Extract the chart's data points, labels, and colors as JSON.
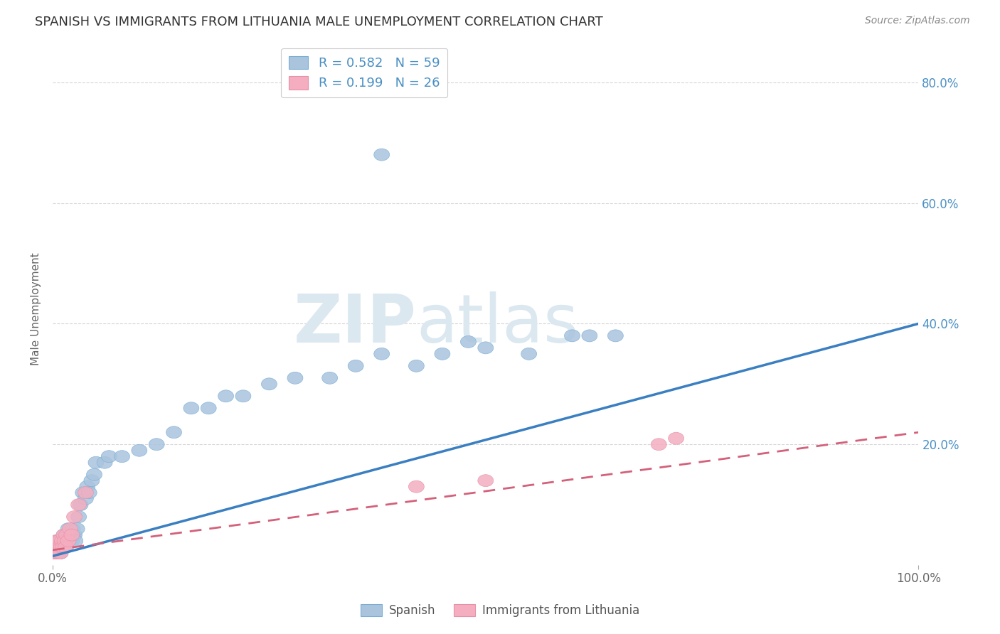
{
  "title": "SPANISH VS IMMIGRANTS FROM LITHUANIA MALE UNEMPLOYMENT CORRELATION CHART",
  "source_text": "Source: ZipAtlas.com",
  "ylabel": "Male Unemployment",
  "xlim": [
    0,
    1.0
  ],
  "ylim": [
    0,
    0.85
  ],
  "ytick_values": [
    0.0,
    0.2,
    0.4,
    0.6,
    0.8
  ],
  "ytick_labels": [
    "",
    "20.0%",
    "40.0%",
    "60.0%",
    "80.0%"
  ],
  "spanish_R": 0.582,
  "spanish_N": 59,
  "lithuania_R": 0.199,
  "lithuania_N": 26,
  "spanish_color": "#aac4de",
  "spanish_edge_color": "#7aaed4",
  "spanish_line_color": "#3a7fc1",
  "lithuania_color": "#f4aec0",
  "lithuania_edge_color": "#e890a8",
  "lithuania_line_color": "#d4607a",
  "watermark_zip": "ZIP",
  "watermark_atlas": "atlas",
  "watermark_color": "#dce8f0",
  "background_color": "#ffffff",
  "grid_color": "#cccccc",
  "spanish_x": [
    0.001,
    0.002,
    0.003,
    0.004,
    0.005,
    0.006,
    0.007,
    0.008,
    0.009,
    0.01,
    0.011,
    0.012,
    0.013,
    0.014,
    0.015,
    0.016,
    0.017,
    0.018,
    0.019,
    0.02,
    0.021,
    0.022,
    0.023,
    0.024,
    0.025,
    0.026,
    0.028,
    0.03,
    0.032,
    0.035,
    0.038,
    0.04,
    0.042,
    0.045,
    0.048,
    0.05,
    0.06,
    0.065,
    0.08,
    0.1,
    0.12,
    0.14,
    0.16,
    0.18,
    0.2,
    0.22,
    0.25,
    0.28,
    0.32,
    0.35,
    0.38,
    0.42,
    0.45,
    0.48,
    0.5,
    0.55,
    0.6,
    0.62,
    0.65
  ],
  "spanish_y": [
    0.02,
    0.03,
    0.02,
    0.04,
    0.03,
    0.02,
    0.04,
    0.03,
    0.02,
    0.03,
    0.04,
    0.03,
    0.05,
    0.04,
    0.03,
    0.05,
    0.04,
    0.06,
    0.05,
    0.04,
    0.05,
    0.04,
    0.06,
    0.05,
    0.05,
    0.04,
    0.06,
    0.08,
    0.1,
    0.12,
    0.11,
    0.13,
    0.12,
    0.14,
    0.15,
    0.17,
    0.17,
    0.18,
    0.18,
    0.19,
    0.2,
    0.22,
    0.26,
    0.26,
    0.28,
    0.28,
    0.3,
    0.31,
    0.31,
    0.33,
    0.35,
    0.33,
    0.35,
    0.37,
    0.36,
    0.35,
    0.38,
    0.38,
    0.38
  ],
  "lithuanian_outlier_x": [
    0.38
  ],
  "lithuanian_outlier_y": [
    0.68
  ],
  "lithuania_x": [
    0.001,
    0.002,
    0.003,
    0.004,
    0.005,
    0.006,
    0.007,
    0.008,
    0.009,
    0.01,
    0.011,
    0.012,
    0.013,
    0.014,
    0.015,
    0.016,
    0.018,
    0.02,
    0.022,
    0.025,
    0.03,
    0.038,
    0.42,
    0.5,
    0.7,
    0.72
  ],
  "lithuania_y": [
    0.02,
    0.03,
    0.02,
    0.04,
    0.03,
    0.02,
    0.04,
    0.03,
    0.02,
    0.03,
    0.04,
    0.03,
    0.05,
    0.04,
    0.03,
    0.05,
    0.04,
    0.06,
    0.05,
    0.08,
    0.1,
    0.12,
    0.13,
    0.14,
    0.2,
    0.21
  ],
  "spanish_line_x0": 0.0,
  "spanish_line_y0": 0.015,
  "spanish_line_x1": 1.0,
  "spanish_line_y1": 0.4,
  "lithuania_line_x0": 0.0,
  "lithuania_line_y0": 0.025,
  "lithuania_line_x1": 1.0,
  "lithuania_line_y1": 0.22
}
